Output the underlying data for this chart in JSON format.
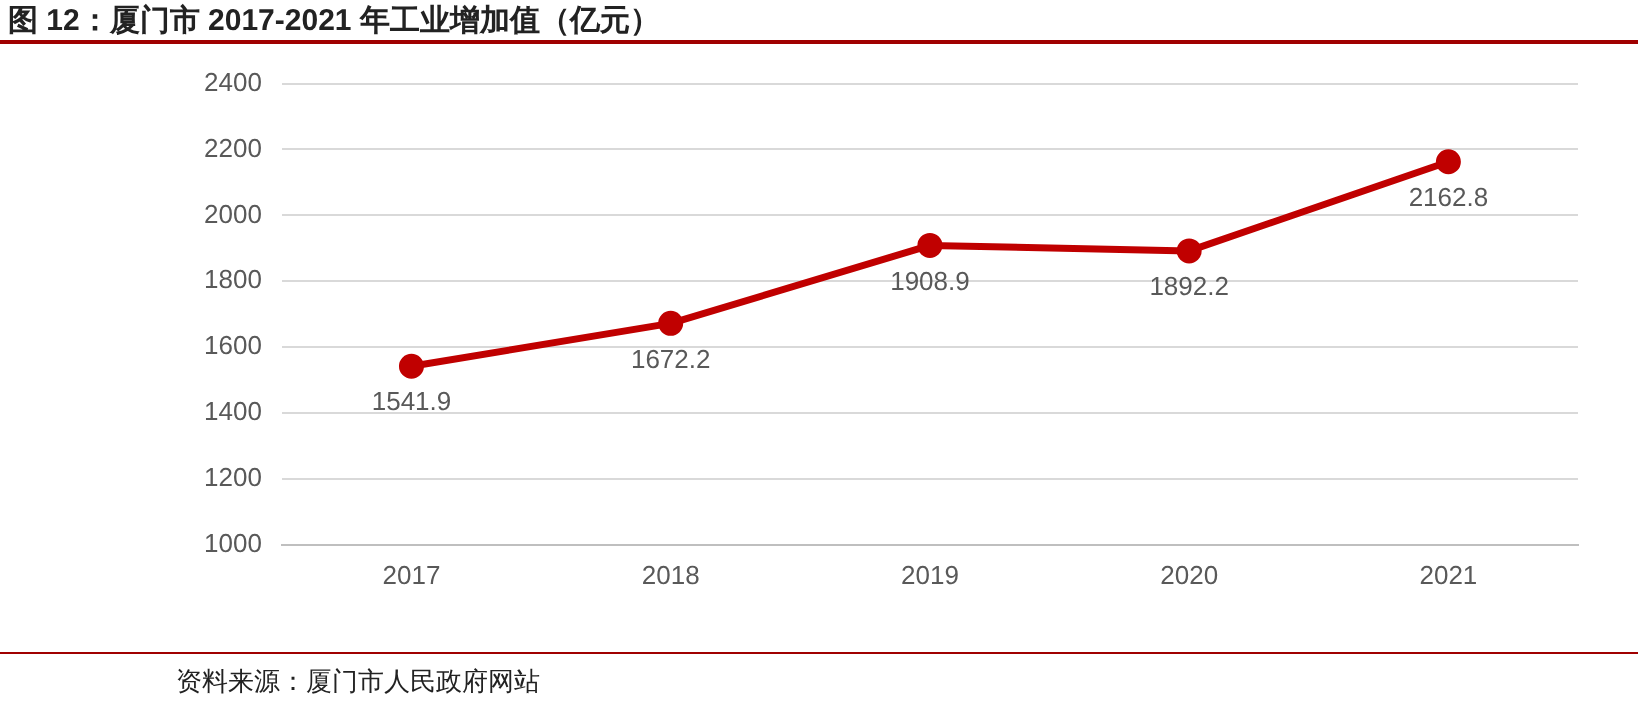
{
  "chart_data": {
    "type": "line",
    "title": "图 12：厦门市 2017-2021 年工业增加值（亿元）",
    "categories": [
      "2017",
      "2018",
      "2019",
      "2020",
      "2021"
    ],
    "series": [
      {
        "color": "#c00000",
        "values": [
          1541.9,
          1672.2,
          1908.9,
          1892.2,
          2162.8
        ]
      }
    ],
    "ylim": [
      1000,
      2400
    ],
    "yticks": [
      1000,
      1200,
      1400,
      1600,
      1800,
      2000,
      2200,
      2400
    ],
    "grid": "y",
    "legend": false,
    "marker": "circle",
    "line_style": "solid",
    "data_labels": true,
    "annotations": [
      "资料来源：厦门市人民政府网站"
    ]
  }
}
